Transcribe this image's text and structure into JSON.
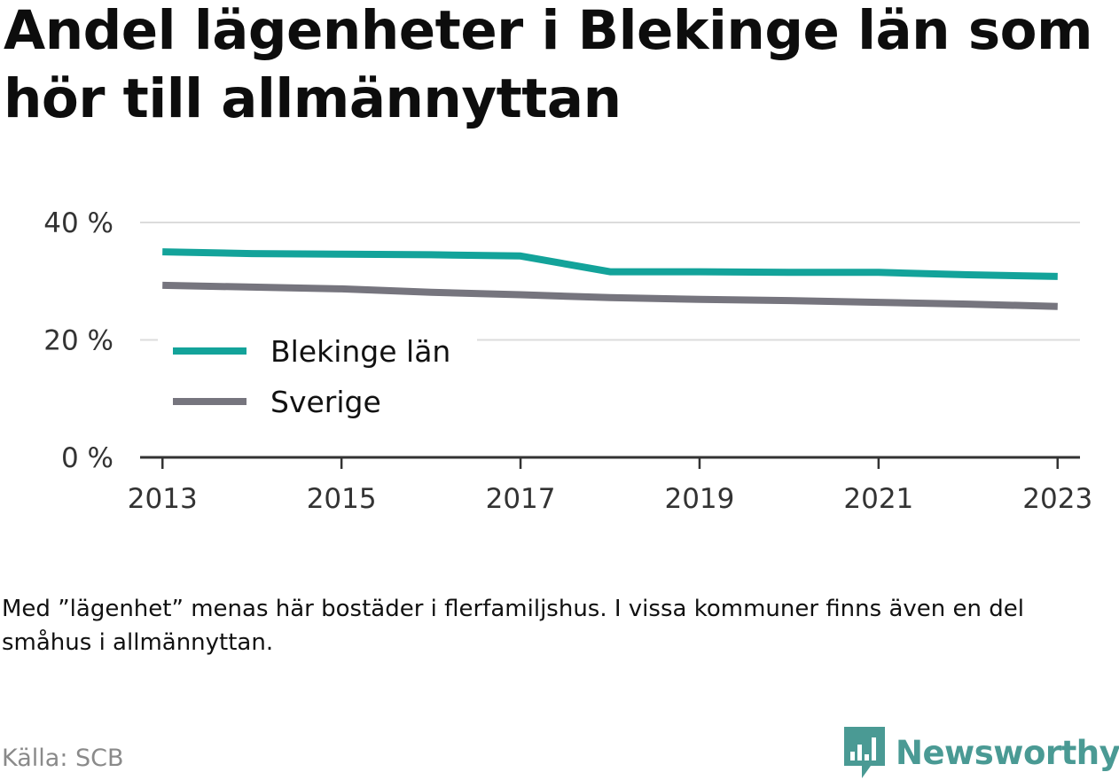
{
  "title": "Andel lägenheter i Blekinge län som hör till allmännyttan",
  "note": "Med ”lägenhet” menas här bostäder i flerfamiljshus. I vissa kommuner finns även en del småhus i allmännyttan.",
  "source": "Källa: SCB",
  "brand": {
    "name": "Newsworthy",
    "color": "#4a9a94",
    "icon": "bar-chart-speech-bubble-icon"
  },
  "chart_data": {
    "type": "line",
    "x": [
      2013,
      2014,
      2015,
      2016,
      2017,
      2018,
      2019,
      2020,
      2021,
      2022,
      2023
    ],
    "series": [
      {
        "name": "Blekinge län",
        "color": "#13a39a",
        "values": [
          35.0,
          34.7,
          34.6,
          34.5,
          34.3,
          31.6,
          31.6,
          31.5,
          31.5,
          31.1,
          30.8
        ]
      },
      {
        "name": "Sverige",
        "color": "#76757e",
        "values": [
          29.3,
          29.0,
          28.7,
          28.1,
          27.7,
          27.2,
          26.9,
          26.7,
          26.4,
          26.1,
          25.7
        ]
      }
    ],
    "xticks": [
      2013,
      2015,
      2017,
      2019,
      2021,
      2023
    ],
    "yticks": [
      {
        "value": 0,
        "label": "0 %"
      },
      {
        "value": 20,
        "label": "20 %"
      },
      {
        "value": 40,
        "label": "40 %"
      }
    ],
    "ylim": [
      0,
      40
    ],
    "xlim": [
      2012.75,
      2023.25
    ],
    "grid": true,
    "legend_position": "left-inside"
  }
}
